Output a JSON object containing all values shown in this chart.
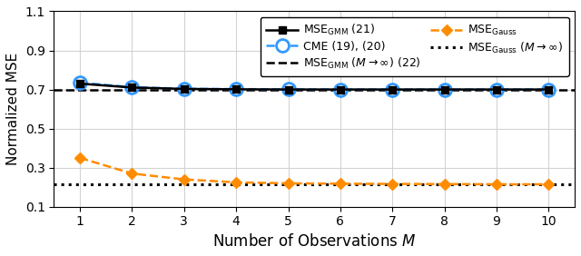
{
  "M": [
    1,
    2,
    3,
    4,
    5,
    6,
    7,
    8,
    9,
    10
  ],
  "mse_gmm": [
    0.73,
    0.71,
    0.703,
    0.701,
    0.7,
    0.7,
    0.7,
    0.7,
    0.7,
    0.7
  ],
  "cme": [
    0.735,
    0.712,
    0.704,
    0.702,
    0.701,
    0.7,
    0.7,
    0.7,
    0.7,
    0.7
  ],
  "mse_gmm_inf": 0.7,
  "mse_gauss": [
    0.35,
    0.27,
    0.24,
    0.225,
    0.22,
    0.218,
    0.217,
    0.216,
    0.215,
    0.215
  ],
  "mse_gauss_inf": 0.215,
  "color_black": "#000000",
  "color_blue": "#3399ff",
  "color_orange": "#ff8c00",
  "ylim": [
    0.1,
    1.1
  ],
  "xlim": [
    0.5,
    10.5
  ],
  "yticks": [
    0.1,
    0.3,
    0.5,
    0.7,
    0.9,
    1.1
  ],
  "xticks": [
    1,
    2,
    3,
    4,
    5,
    6,
    7,
    8,
    9,
    10
  ],
  "xlabel": "Number of Observations $M$",
  "ylabel": "Normalized MSE",
  "figsize": [
    6.4,
    2.82
  ],
  "dpi": 100,
  "legend_fontsize": 9.0
}
